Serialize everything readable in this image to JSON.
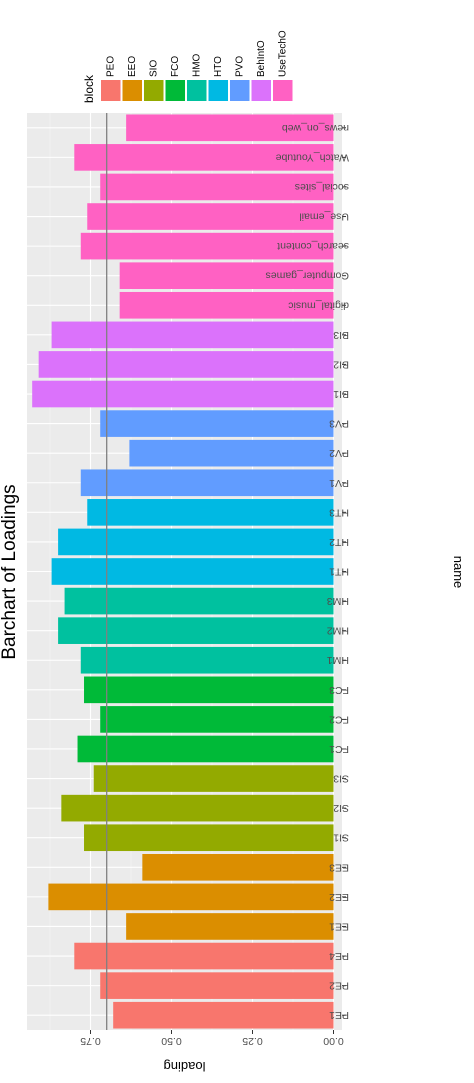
{
  "chart_data": {
    "type": "bar",
    "orientation": "horizontal",
    "title": "Barchart of Loadings",
    "xlabel": "loading",
    "ylabel": "name",
    "xlim": [
      0,
      0.95
    ],
    "x_ticks": [
      0.0,
      0.25,
      0.5,
      0.75
    ],
    "x_tick_labels": [
      "0.00",
      "0.25",
      "0.50",
      "0.75"
    ],
    "reference_line": 0.7,
    "reference_line_color": "#808080",
    "grid": true,
    "panel_background": "#ebebeb",
    "legend": {
      "title": "block",
      "placement": "top",
      "entries": [
        {
          "label": "PEO",
          "color": "#F8766D"
        },
        {
          "label": "EEO",
          "color": "#DB8E00"
        },
        {
          "label": "SIO",
          "color": "#93AA00"
        },
        {
          "label": "FCO",
          "color": "#00BA38"
        },
        {
          "label": "HMO",
          "color": "#00C19F"
        },
        {
          "label": "HTO",
          "color": "#00B9E3"
        },
        {
          "label": "PVO",
          "color": "#619CFF"
        },
        {
          "label": "BehIntO",
          "color": "#DB72FB"
        },
        {
          "label": "UseTechO",
          "color": "#FF61C3"
        }
      ]
    },
    "bars": [
      {
        "name": "PE1",
        "value": 0.68,
        "block": "PEO"
      },
      {
        "name": "PE2",
        "value": 0.72,
        "block": "PEO"
      },
      {
        "name": "PE4",
        "value": 0.8,
        "block": "PEO"
      },
      {
        "name": "EE1",
        "value": 0.64,
        "block": "EEO"
      },
      {
        "name": "EE2",
        "value": 0.88,
        "block": "EEO"
      },
      {
        "name": "EE3",
        "value": 0.59,
        "block": "EEO"
      },
      {
        "name": "SI1",
        "value": 0.77,
        "block": "SIO"
      },
      {
        "name": "SI2",
        "value": 0.84,
        "block": "SIO"
      },
      {
        "name": "SI3",
        "value": 0.74,
        "block": "SIO"
      },
      {
        "name": "FC1",
        "value": 0.79,
        "block": "FCO"
      },
      {
        "name": "FC2",
        "value": 0.72,
        "block": "FCO"
      },
      {
        "name": "FC3",
        "value": 0.77,
        "block": "FCO"
      },
      {
        "name": "HM1",
        "value": 0.78,
        "block": "HMO"
      },
      {
        "name": "HM2",
        "value": 0.85,
        "block": "HMO"
      },
      {
        "name": "HM3",
        "value": 0.83,
        "block": "HMO"
      },
      {
        "name": "HT1",
        "value": 0.87,
        "block": "HTO"
      },
      {
        "name": "HT2",
        "value": 0.85,
        "block": "HTO"
      },
      {
        "name": "HT3",
        "value": 0.76,
        "block": "HTO"
      },
      {
        "name": "PV1",
        "value": 0.78,
        "block": "PVO"
      },
      {
        "name": "PV2",
        "value": 0.63,
        "block": "PVO"
      },
      {
        "name": "PV3",
        "value": 0.72,
        "block": "PVO"
      },
      {
        "name": "BI1",
        "value": 0.93,
        "block": "BehIntO"
      },
      {
        "name": "BI2",
        "value": 0.91,
        "block": "BehIntO"
      },
      {
        "name": "BI3",
        "value": 0.87,
        "block": "BehIntO"
      },
      {
        "name": "digital_music",
        "value": 0.66,
        "block": "UseTechO"
      },
      {
        "name": "Computer_games",
        "value": 0.66,
        "block": "UseTechO"
      },
      {
        "name": "search_content",
        "value": 0.78,
        "block": "UseTechO"
      },
      {
        "name": "Use_email",
        "value": 0.76,
        "block": "UseTechO"
      },
      {
        "name": "social_sites",
        "value": 0.72,
        "block": "UseTechO"
      },
      {
        "name": "Watch_Youtube",
        "value": 0.8,
        "block": "UseTechO"
      },
      {
        "name": "news_on_web",
        "value": 0.64,
        "block": "UseTechO"
      }
    ]
  }
}
